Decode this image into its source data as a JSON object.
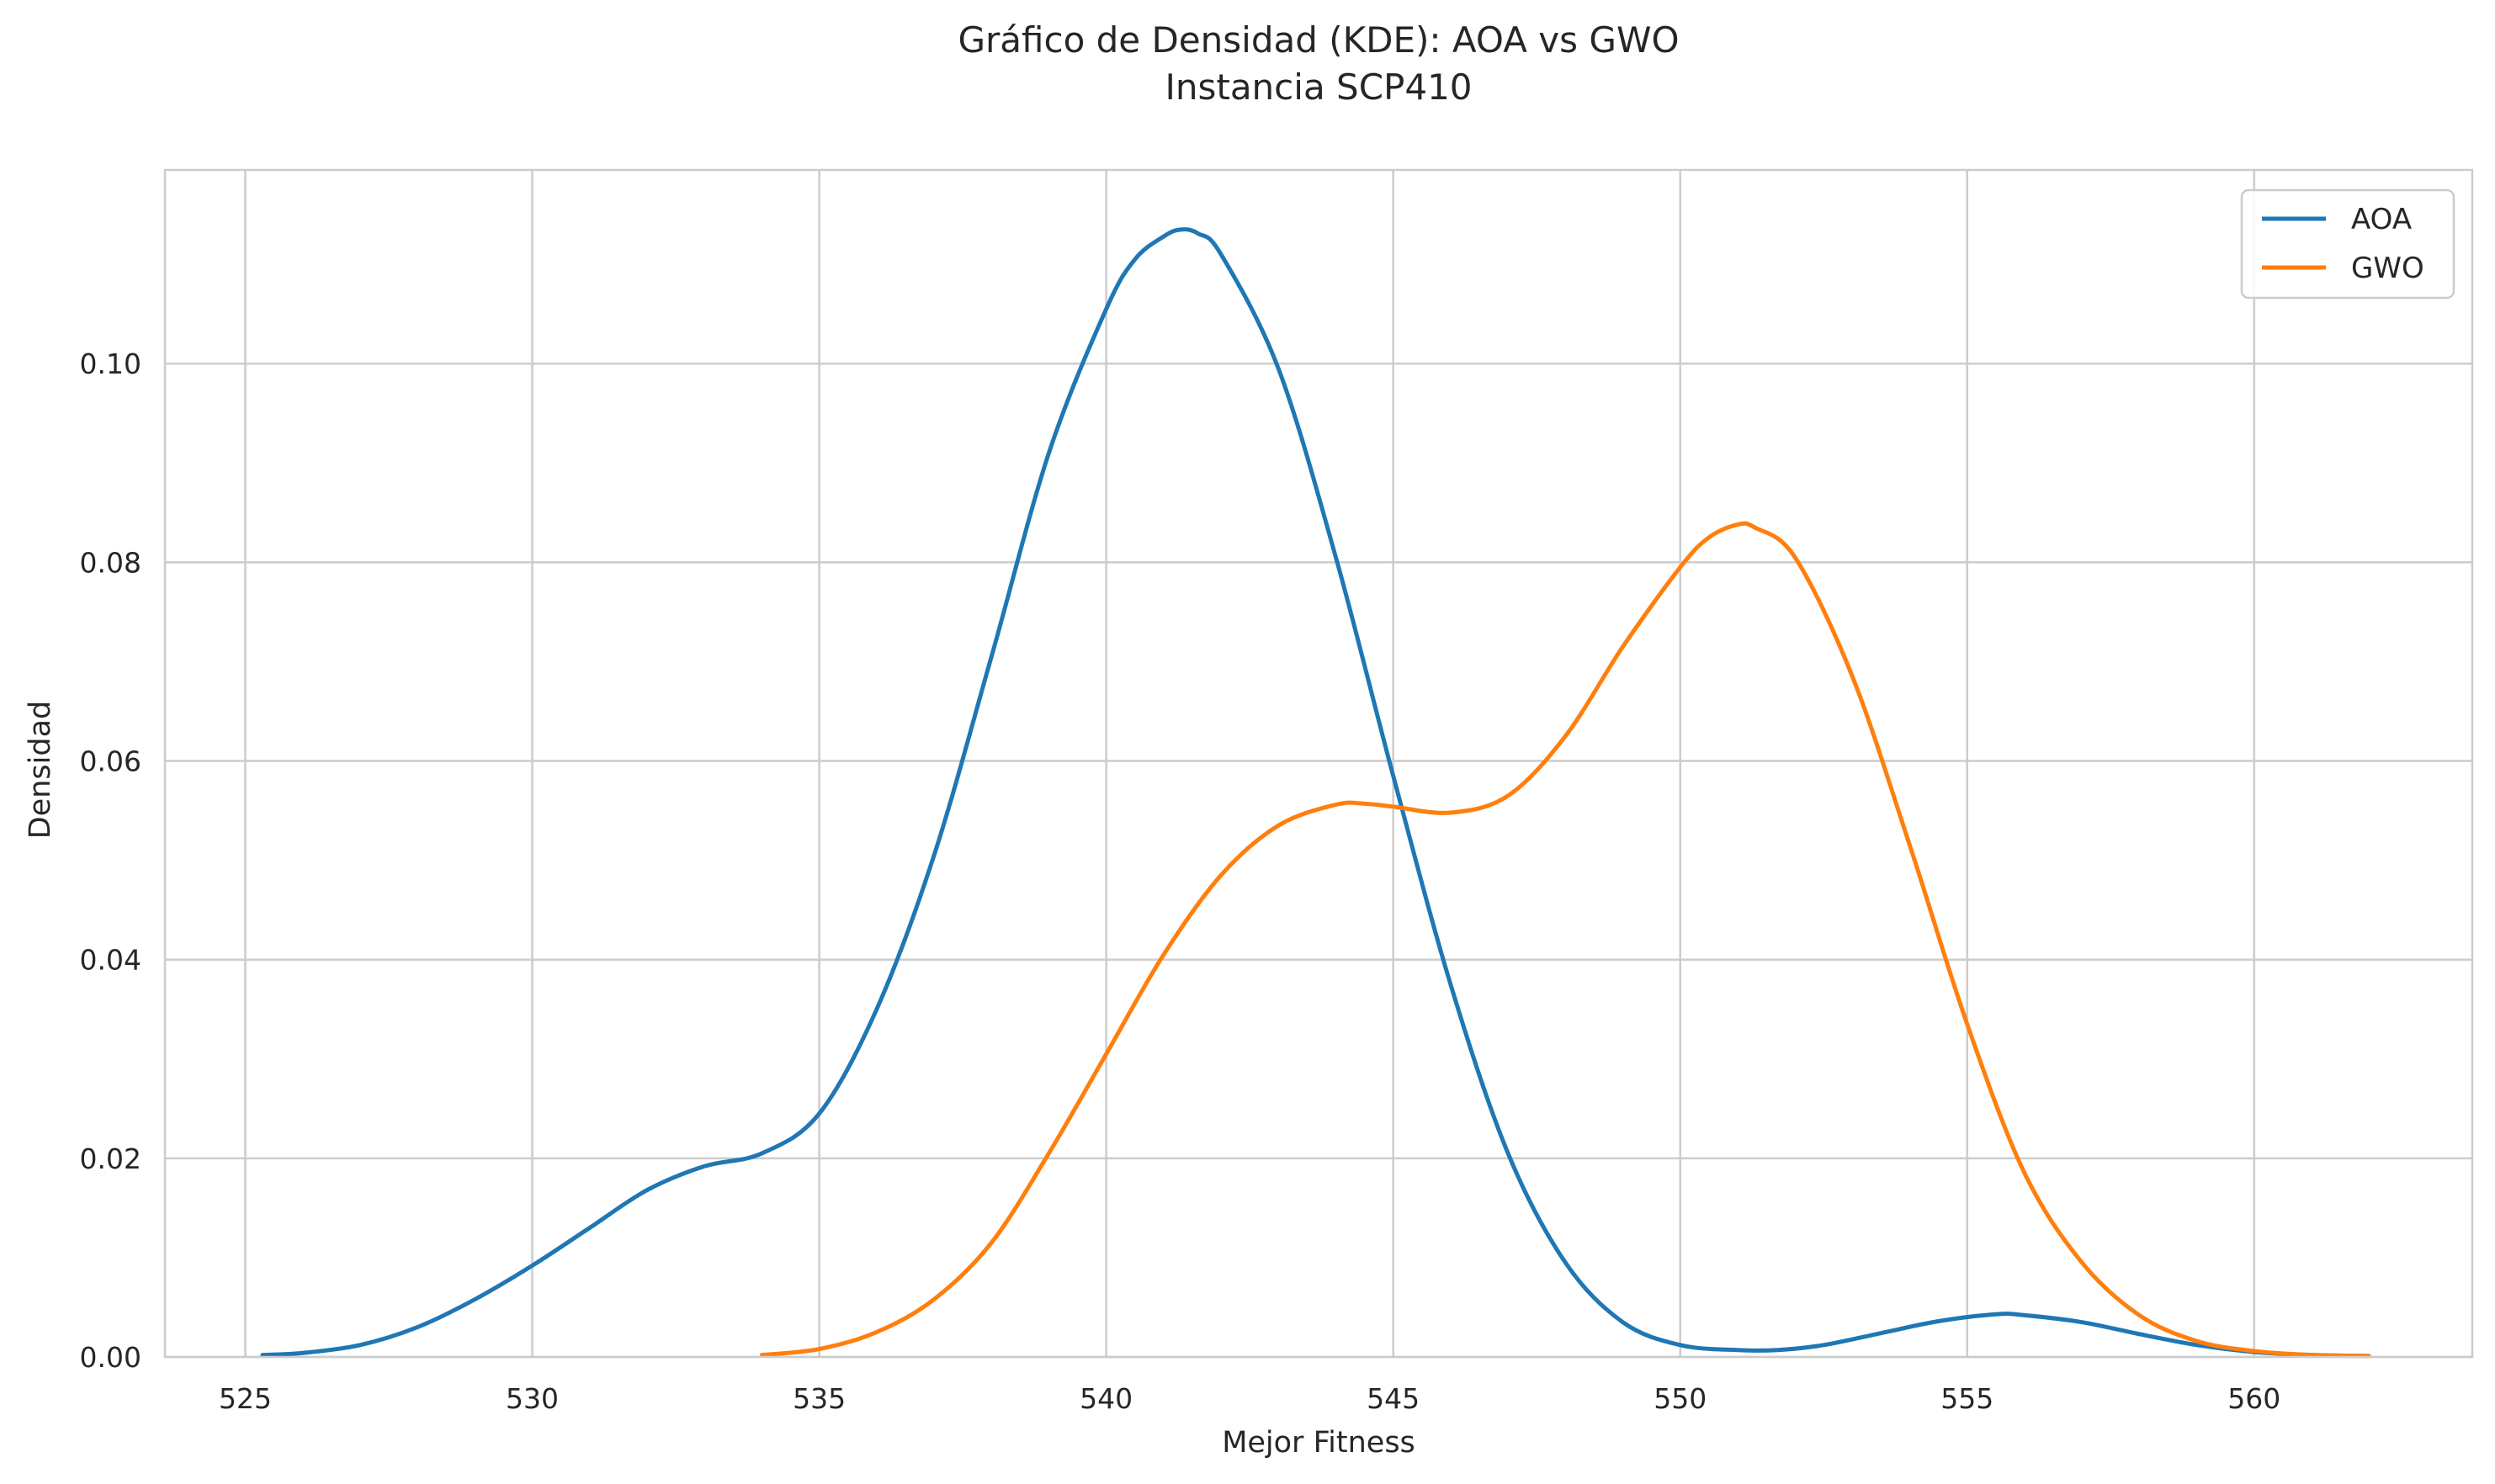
{
  "chart_data": {
    "type": "line",
    "title": "Gráfico de Densidad (KDE): AOA vs GWO",
    "subtitle": "Instancia SCP410",
    "xlabel": "Mejor Fitness",
    "ylabel": "Densidad",
    "xlim": [
      523.6,
      563.8
    ],
    "ylim": [
      0,
      0.1195
    ],
    "xticks": [
      525,
      530,
      535,
      540,
      545,
      550,
      555,
      560
    ],
    "xtick_labels": [
      "525",
      "530",
      "535",
      "540",
      "545",
      "550",
      "555",
      "560"
    ],
    "yticks": [
      0,
      0.02,
      0.04,
      0.06,
      0.08,
      0.1
    ],
    "ytick_labels": [
      "0.00",
      "0.02",
      "0.04",
      "0.06",
      "0.08",
      "0.10"
    ],
    "grid": true,
    "legend_position": "top-right",
    "series": [
      {
        "name": "AOA",
        "color": "#1f77b4",
        "x": [
          525.3,
          526,
          527,
          528,
          529,
          530,
          531,
          532,
          533,
          534,
          535,
          536,
          537,
          538,
          539,
          540,
          540.5,
          541,
          541.3,
          541.6,
          542,
          543,
          544,
          545,
          546,
          547,
          548,
          549,
          550,
          551,
          551.7,
          552.5,
          553.5,
          554.5,
          555.5,
          556,
          557,
          558,
          559,
          560,
          561,
          562
        ],
        "y": [
          0.0002,
          0.0004,
          0.0012,
          0.003,
          0.0058,
          0.0092,
          0.013,
          0.0168,
          0.0192,
          0.0205,
          0.0245,
          0.035,
          0.0505,
          0.0705,
          0.091,
          0.1055,
          0.1105,
          0.1128,
          0.1135,
          0.1131,
          0.111,
          0.0995,
          0.0805,
          0.0585,
          0.0375,
          0.0205,
          0.0095,
          0.0035,
          0.0012,
          0.0007,
          0.0007,
          0.0012,
          0.0024,
          0.0036,
          0.0043,
          0.0042,
          0.0035,
          0.0023,
          0.0012,
          0.0005,
          0.0002,
          0.0001
        ]
      },
      {
        "name": "GWO",
        "color": "#ff7f0e",
        "x": [
          534,
          535,
          536,
          537,
          538,
          539,
          540,
          541,
          542,
          543,
          544,
          544.5,
          545,
          546,
          547,
          548,
          549,
          550,
          550.5,
          551,
          551.3,
          552,
          553,
          554,
          555,
          556,
          557,
          558,
          559,
          560,
          561,
          562
        ],
        "y": [
          0.0002,
          0.0008,
          0.0025,
          0.0058,
          0.0115,
          0.0205,
          0.0305,
          0.0405,
          0.0485,
          0.0535,
          0.0556,
          0.0557,
          0.0554,
          0.0548,
          0.0565,
          0.0625,
          0.0715,
          0.0795,
          0.0825,
          0.0838,
          0.0835,
          0.0805,
          0.0685,
          0.0515,
          0.0335,
          0.0185,
          0.0095,
          0.0042,
          0.0016,
          0.0006,
          0.0002,
          0.0001
        ]
      }
    ]
  }
}
